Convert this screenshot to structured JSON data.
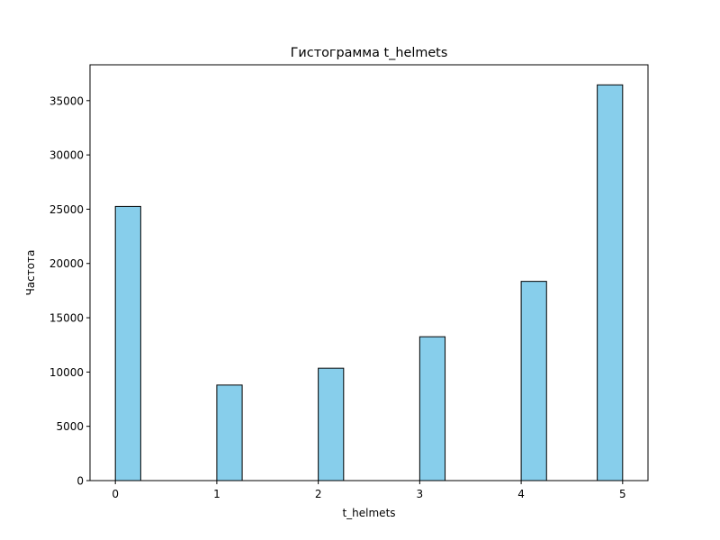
{
  "chart_data": {
    "type": "bar",
    "title": "Гистограмма t_helmets",
    "xlabel": "t_helmets",
    "ylabel": "Частота",
    "x_ticks": [
      0,
      1,
      2,
      3,
      4,
      5
    ],
    "y_ticks": [
      0,
      5000,
      10000,
      15000,
      20000,
      25000,
      30000,
      35000
    ],
    "x_tick_labels": [
      "0",
      "1",
      "2",
      "3",
      "4",
      "5"
    ],
    "y_tick_labels": [
      "0",
      "5000",
      "10000",
      "15000",
      "20000",
      "25000",
      "30000",
      "35000"
    ],
    "xlim": [
      -0.25,
      5.25
    ],
    "ylim": [
      0,
      38300
    ],
    "bin_width": 0.25,
    "bars": [
      {
        "x_start": 0.0,
        "x_end": 0.25,
        "value": 25250
      },
      {
        "x_start": 1.0,
        "x_end": 1.25,
        "value": 8800
      },
      {
        "x_start": 2.0,
        "x_end": 2.25,
        "value": 10350
      },
      {
        "x_start": 3.0,
        "x_end": 3.25,
        "value": 13250
      },
      {
        "x_start": 4.0,
        "x_end": 4.25,
        "value": 18350
      },
      {
        "x_start": 4.75,
        "x_end": 5.0,
        "value": 36450
      }
    ],
    "bar_color": "#87ceeb",
    "edge_color": "#000000",
    "grid": false,
    "legend": "none"
  }
}
